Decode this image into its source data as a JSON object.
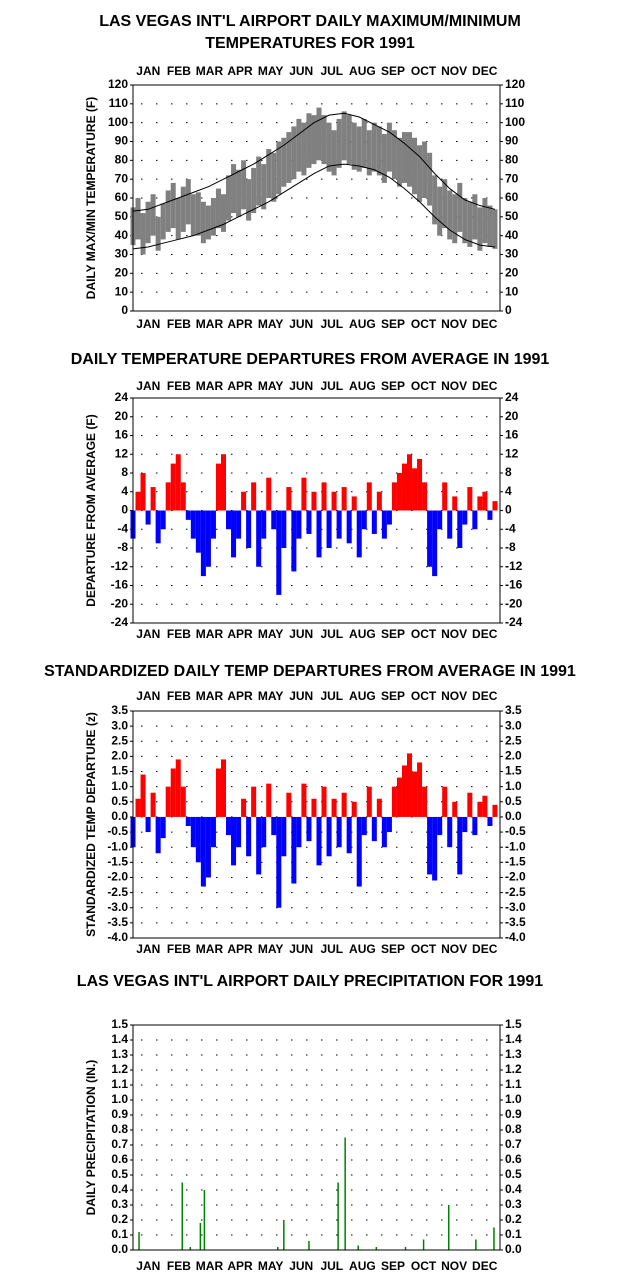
{
  "chart_data": [
    {
      "type": "band",
      "title": [
        "LAS VEGAS INT'L AIRPORT DAILY MAXIMUM/MINIMUM",
        "TEMPERATURES FOR 1991"
      ],
      "y_label": "DAILY MAX/MIN TEMPERATURE (F)",
      "months": [
        "JAN",
        "FEB",
        "MAR",
        "APR",
        "MAY",
        "JUN",
        "JUL",
        "AUG",
        "SEP",
        "OCT",
        "NOV",
        "DEC"
      ],
      "xlim": [
        1,
        366
      ],
      "ylim": [
        0,
        120
      ],
      "yticks": [
        0,
        10,
        20,
        30,
        40,
        50,
        60,
        70,
        80,
        90,
        100,
        110,
        120
      ],
      "grid": true,
      "color": "#808080",
      "normal_color": "#000000",
      "x": [
        1,
        6,
        11,
        16,
        21,
        26,
        31,
        36,
        41,
        46,
        51,
        56,
        61,
        66,
        71,
        76,
        81,
        86,
        91,
        96,
        101,
        106,
        111,
        116,
        121,
        126,
        131,
        136,
        141,
        146,
        151,
        156,
        161,
        166,
        171,
        176,
        181,
        186,
        191,
        196,
        201,
        206,
        211,
        216,
        221,
        226,
        231,
        236,
        241,
        246,
        251,
        256,
        261,
        266,
        271,
        276,
        281,
        286,
        291,
        296,
        301,
        306,
        311,
        316,
        321,
        326,
        331,
        336,
        341,
        346,
        351,
        356,
        361
      ],
      "max": [
        55,
        60,
        52,
        58,
        62,
        50,
        57,
        64,
        68,
        60,
        66,
        70,
        62,
        63,
        58,
        56,
        60,
        65,
        62,
        72,
        78,
        75,
        80,
        70,
        76,
        82,
        78,
        86,
        84,
        90,
        92,
        95,
        98,
        102,
        100,
        105,
        104,
        108,
        104,
        100,
        96,
        102,
        106,
        104,
        100,
        98,
        102,
        96,
        100,
        98,
        94,
        100,
        96,
        92,
        95,
        95,
        92,
        88,
        90,
        84,
        72,
        66,
        70,
        64,
        62,
        68,
        60,
        58,
        62,
        55,
        60,
        56,
        54
      ],
      "min": [
        35,
        38,
        30,
        36,
        40,
        32,
        38,
        42,
        44,
        38,
        42,
        46,
        40,
        40,
        36,
        38,
        40,
        44,
        42,
        48,
        52,
        50,
        54,
        48,
        52,
        56,
        54,
        60,
        58,
        62,
        66,
        68,
        70,
        74,
        72,
        76,
        78,
        80,
        78,
        74,
        72,
        76,
        80,
        78,
        75,
        74,
        76,
        72,
        74,
        72,
        68,
        74,
        70,
        66,
        68,
        66,
        62,
        58,
        60,
        56,
        46,
        40,
        44,
        38,
        36,
        42,
        36,
        34,
        38,
        32,
        36,
        34,
        33
      ],
      "normal_x": [
        1,
        16,
        31,
        46,
        61,
        76,
        91,
        106,
        121,
        136,
        151,
        166,
        181,
        196,
        211,
        226,
        241,
        256,
        271,
        286,
        301,
        316,
        331,
        346,
        361
      ],
      "normal_max": [
        53,
        54,
        57,
        60,
        63,
        66,
        70,
        74,
        78,
        83,
        88,
        94,
        100,
        104,
        105,
        103,
        99,
        95,
        89,
        82,
        73,
        65,
        59,
        56,
        54
      ],
      "normal_min": [
        33,
        34,
        36,
        38,
        40,
        43,
        46,
        50,
        54,
        58,
        63,
        68,
        73,
        77,
        78,
        77,
        75,
        71,
        65,
        58,
        50,
        43,
        38,
        35,
        34
      ]
    },
    {
      "type": "bar",
      "title": [
        "DAILY TEMPERATURE DEPARTURES FROM AVERAGE IN 1991"
      ],
      "y_label": "DEPARTURE FROM AVERAGE (F)",
      "months": [
        "JAN",
        "FEB",
        "MAR",
        "APR",
        "MAY",
        "JUN",
        "JUL",
        "AUG",
        "SEP",
        "OCT",
        "NOV",
        "DEC"
      ],
      "xlim": [
        1,
        366
      ],
      "ylim": [
        -24,
        24
      ],
      "yticks": [
        -24,
        -20,
        -16,
        -12,
        -8,
        -4,
        0,
        4,
        8,
        12,
        16,
        20,
        24
      ],
      "grid": true,
      "positive_color": "#ff0000",
      "negative_color": "#0000ff",
      "x": [
        1,
        6,
        11,
        16,
        21,
        26,
        31,
        36,
        41,
        46,
        51,
        56,
        61,
        66,
        71,
        76,
        81,
        86,
        91,
        96,
        101,
        106,
        111,
        116,
        121,
        126,
        131,
        136,
        141,
        146,
        151,
        156,
        161,
        166,
        171,
        176,
        181,
        186,
        191,
        196,
        201,
        206,
        211,
        216,
        221,
        226,
        231,
        236,
        241,
        246,
        251,
        256,
        261,
        266,
        271,
        276,
        281,
        286,
        291,
        296,
        301,
        306,
        311,
        316,
        321,
        326,
        331,
        336,
        341,
        346,
        351,
        356,
        361
      ],
      "values": [
        -6,
        4,
        8,
        -3,
        5,
        -7,
        -4,
        6,
        10,
        12,
        6,
        -2,
        -6,
        -9,
        -14,
        -12,
        -6,
        10,
        12,
        -4,
        -10,
        -6,
        4,
        -8,
        6,
        -12,
        -6,
        7,
        -4,
        -18,
        -8,
        5,
        -13,
        -6,
        7,
        -5,
        4,
        -10,
        6,
        -8,
        4,
        -6,
        5,
        -7,
        3,
        -10,
        -4,
        6,
        -5,
        4,
        -6,
        -3,
        6,
        8,
        10,
        12,
        9,
        11,
        6,
        -12,
        -14,
        -4,
        6,
        -6,
        3,
        -8,
        -3,
        5,
        -4,
        3,
        4,
        -2,
        2
      ]
    },
    {
      "type": "bar",
      "title": [
        "STANDARDIZED DAILY TEMP DEPARTURES FROM AVERAGE IN 1991"
      ],
      "y_label": "STANDARDIZED TEMP DEPARTURE (z)",
      "months": [
        "JAN",
        "FEB",
        "MAR",
        "APR",
        "MAY",
        "JUN",
        "JUL",
        "AUG",
        "SEP",
        "OCT",
        "NOV",
        "DEC"
      ],
      "xlim": [
        1,
        366
      ],
      "ylim": [
        -4,
        3.5
      ],
      "yticks": [
        {
          "value": -4,
          "label": "-4.0"
        },
        -3.5,
        {
          "value": -3,
          "label": "-3.0"
        },
        -2.5,
        {
          "value": -2,
          "label": "-2.0"
        },
        -1.5,
        {
          "value": -1,
          "label": "-1.0"
        },
        -0.5,
        {
          "value": 0,
          "label": "0.0"
        },
        0.5,
        {
          "value": 1,
          "label": "1.0"
        },
        1.5,
        {
          "value": 2,
          "label": "2.0"
        },
        2.5,
        {
          "value": 3,
          "label": "3.0"
        },
        3.5
      ],
      "grid": true,
      "positive_color": "#ff0000",
      "negative_color": "#0000ff",
      "x": [
        1,
        6,
        11,
        16,
        21,
        26,
        31,
        36,
        41,
        46,
        51,
        56,
        61,
        66,
        71,
        76,
        81,
        86,
        91,
        96,
        101,
        106,
        111,
        116,
        121,
        126,
        131,
        136,
        141,
        146,
        151,
        156,
        161,
        166,
        171,
        176,
        181,
        186,
        191,
        196,
        201,
        206,
        211,
        216,
        221,
        226,
        231,
        236,
        241,
        246,
        251,
        256,
        261,
        266,
        271,
        276,
        281,
        286,
        291,
        296,
        301,
        306,
        311,
        316,
        321,
        326,
        331,
        336,
        341,
        346,
        351,
        356,
        361
      ],
      "values": [
        -1.0,
        0.6,
        1.4,
        -0.5,
        0.8,
        -1.2,
        -0.7,
        1.0,
        1.6,
        1.9,
        1.0,
        -0.3,
        -1.0,
        -1.5,
        -2.3,
        -2.0,
        -1.0,
        1.6,
        1.9,
        -0.6,
        -1.6,
        -1.0,
        0.6,
        -1.3,
        1.0,
        -1.9,
        -1.0,
        1.1,
        -0.6,
        -3.0,
        -1.3,
        0.8,
        -2.2,
        -1.0,
        1.1,
        -0.8,
        0.6,
        -1.6,
        1.0,
        -1.3,
        0.6,
        -1.0,
        0.8,
        -1.2,
        0.5,
        -2.3,
        -0.6,
        1.0,
        -0.8,
        0.6,
        -1.0,
        -0.5,
        1.0,
        1.3,
        1.7,
        2.1,
        1.5,
        1.8,
        1.0,
        -1.9,
        -2.1,
        -0.6,
        1.0,
        -1.0,
        0.5,
        -1.9,
        -0.5,
        0.8,
        -0.6,
        0.5,
        0.7,
        -0.3,
        0.4
      ]
    },
    {
      "type": "precip",
      "title": [
        "LAS VEGAS INT'L AIRPORT DAILY PRECIPITATION FOR 1991"
      ],
      "y_label": "DAILY PRECIPITATION (IN.)",
      "months": [
        "JAN",
        "FEB",
        "MAR",
        "APR",
        "MAY",
        "JUN",
        "JUL",
        "AUG",
        "SEP",
        "OCT",
        "NOV",
        "DEC"
      ],
      "xlim": [
        1,
        366
      ],
      "ylim": [
        0,
        1.5
      ],
      "yticks": [
        {
          "value": 0,
          "label": "0.0"
        },
        0.1,
        0.2,
        0.3,
        0.4,
        0.5,
        0.6,
        0.7,
        0.8,
        0.9,
        {
          "value": 1,
          "label": "1.0"
        },
        1.1,
        1.2,
        1.3,
        1.4,
        1.5
      ],
      "grid": true,
      "color": "#008000",
      "x": [
        7,
        50,
        58,
        68,
        72,
        145,
        151,
        176,
        205,
        212,
        225,
        243,
        272,
        290,
        315,
        342,
        360
      ],
      "values": [
        0.12,
        0.45,
        0.02,
        0.18,
        0.4,
        0.02,
        0.2,
        0.06,
        0.45,
        0.75,
        0.03,
        0.02,
        0.02,
        0.07,
        0.3,
        0.07,
        0.15
      ]
    }
  ]
}
